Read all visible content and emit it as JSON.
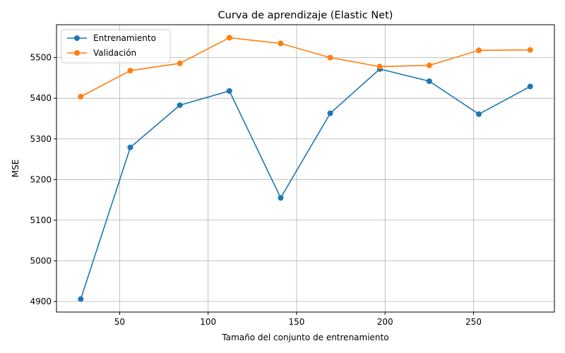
{
  "chart_data": {
    "type": "line",
    "title": "Curva de aprendizaje (Elastic Net)",
    "xlabel": "Tamaño del conjunto de entrenamiento",
    "ylabel": "MSE",
    "x": [
      28,
      56,
      84,
      112,
      141,
      169,
      197,
      225,
      253,
      282
    ],
    "series": [
      {
        "name": "Entrenamiento",
        "color": "#1f77b4",
        "values": [
          4906,
          5279,
          5383,
          5418,
          5155,
          5363,
          5472,
          5442,
          5361,
          5429
        ]
      },
      {
        "name": "Validación",
        "color": "#ff7f0e",
        "values": [
          5404,
          5468,
          5486,
          5549,
          5535,
          5500,
          5478,
          5481,
          5518,
          5519
        ]
      }
    ],
    "xlim": [
      14.3,
      295.7
    ],
    "ylim": [
      4874,
      5581
    ],
    "xticks": [
      50,
      100,
      150,
      200,
      250
    ],
    "yticks": [
      4900,
      5000,
      5100,
      5200,
      5300,
      5400,
      5500
    ],
    "grid": true,
    "legend_position": "top-left"
  }
}
